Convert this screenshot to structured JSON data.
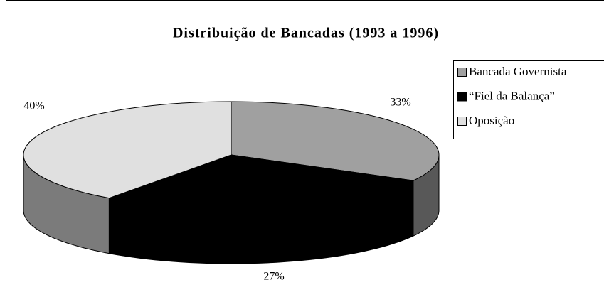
{
  "chart_data": {
    "type": "pie",
    "title": "Distribuição de Bancadas (1993 a 1996)",
    "categories": [
      "Bancada Governista",
      "“Fiel da Balança”",
      "Oposição"
    ],
    "values": [
      33,
      27,
      40
    ],
    "value_labels": [
      "33%",
      "27%",
      "40%"
    ],
    "colors": [
      "#a0a0a0",
      "#000000",
      "#e0e0e0"
    ],
    "legend": "right"
  }
}
